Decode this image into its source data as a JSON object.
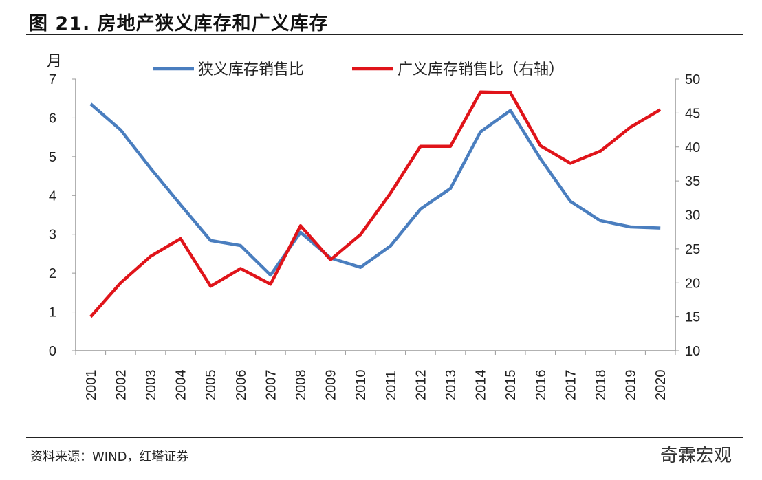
{
  "title": "图 21. 房地产狭义库存和广义库存",
  "source": "资料来源：WIND，红塔证券",
  "watermark": "奇霖宏观",
  "chart_data": {
    "type": "line",
    "title": "图 21. 房地产狭义库存和广义库存",
    "ylabel_left": "月",
    "ylim_left": [
      0,
      7
    ],
    "yticks_left": [
      0,
      1,
      2,
      3,
      4,
      5,
      6,
      7
    ],
    "ylim_right": [
      10,
      50
    ],
    "yticks_right": [
      10,
      15,
      20,
      25,
      30,
      35,
      40,
      45,
      50
    ],
    "legend_placement": "top",
    "grid": false,
    "categories": [
      "2001",
      "2002",
      "2003",
      "2004",
      "2005",
      "2006",
      "2007",
      "2008",
      "2009",
      "2010",
      "2011",
      "2012",
      "2013",
      "2014",
      "2015",
      "2016",
      "2017",
      "2018",
      "2019",
      "2020"
    ],
    "series": [
      {
        "name": "狭义库存销售比",
        "axis": "left",
        "color": "#4a7ebf",
        "values": [
          6.36,
          5.69,
          4.7,
          3.76,
          2.84,
          2.71,
          1.95,
          3.05,
          2.39,
          2.15,
          2.7,
          3.65,
          4.18,
          5.64,
          6.19,
          4.95,
          3.85,
          3.35,
          3.19,
          3.16
        ]
      },
      {
        "name": "广义库存销售比（右轴）",
        "axis": "right",
        "color": "#e0141a",
        "values": [
          15.0,
          20.0,
          23.9,
          26.5,
          19.5,
          22.1,
          19.8,
          28.4,
          23.4,
          27.1,
          33.2,
          40.1,
          40.1,
          48.1,
          48.0,
          40.2,
          37.6,
          39.4,
          42.9,
          45.5
        ]
      }
    ]
  }
}
